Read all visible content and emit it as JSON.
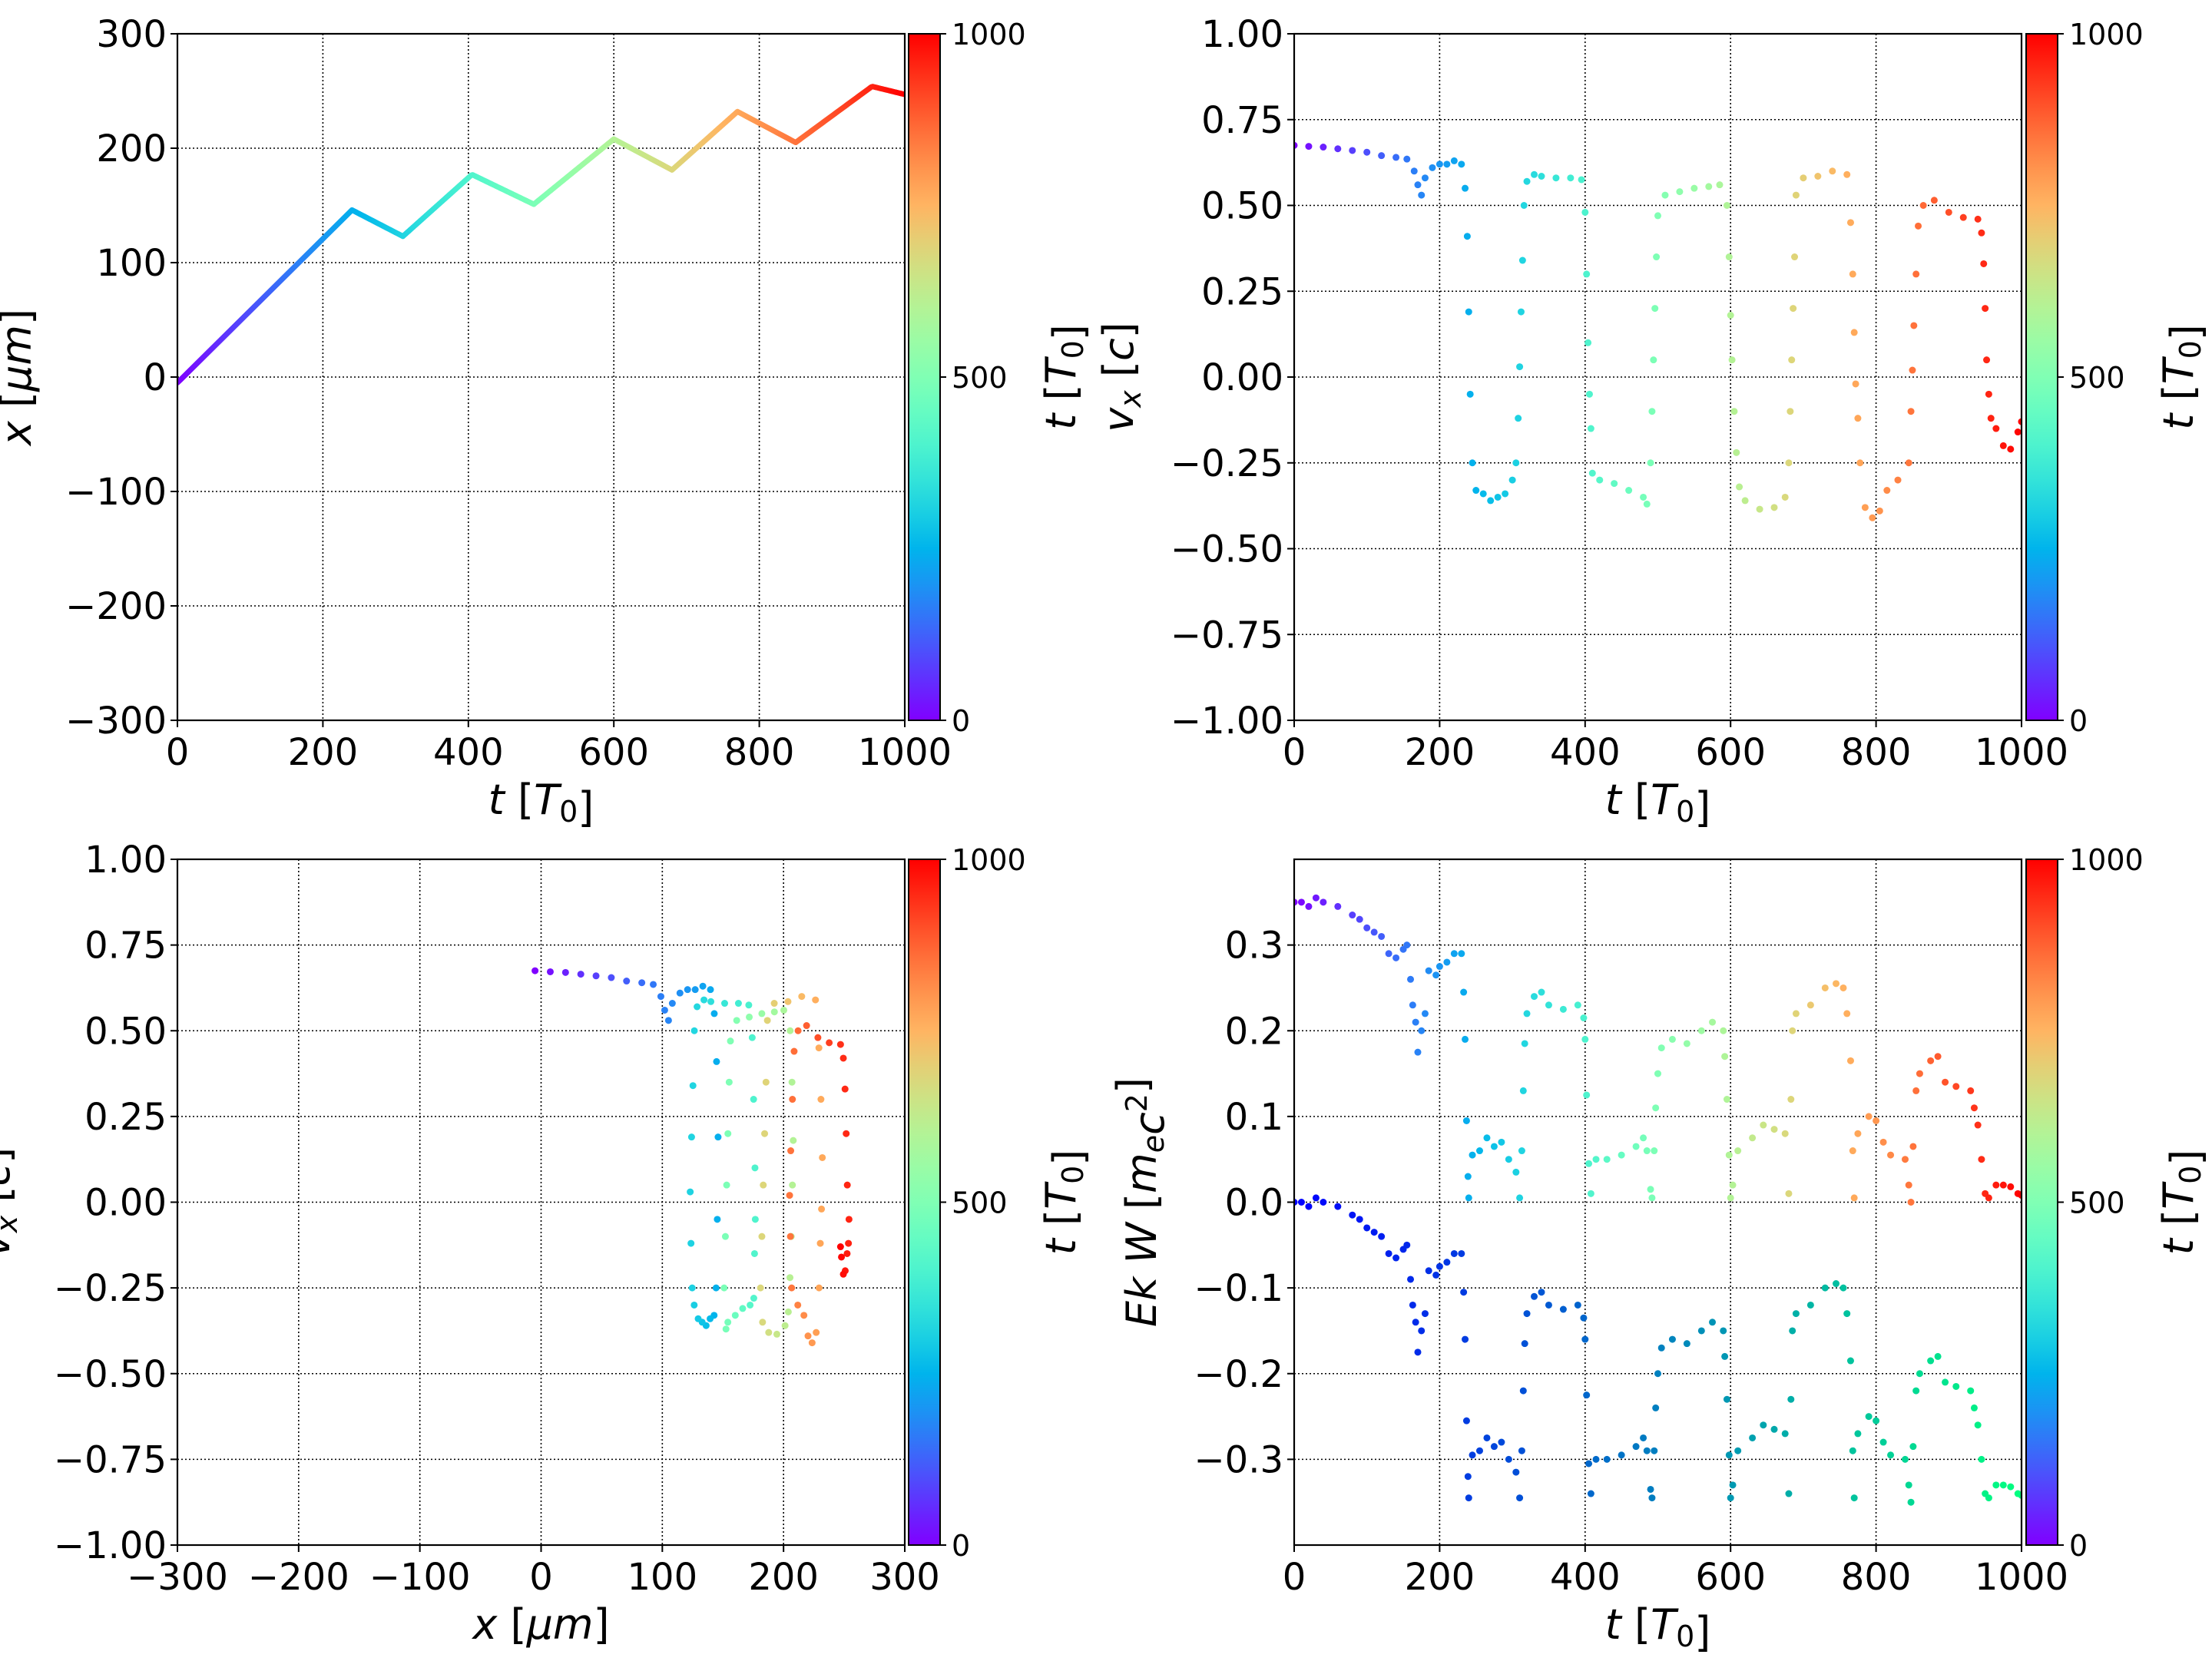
{
  "chart_data": [
    {
      "type": "line",
      "xlabel": {
        "var": "t",
        "unit": "T",
        "sub": "0"
      },
      "ylabel": {
        "var": "x",
        "unit": "μm"
      },
      "xlim": [
        0,
        1000
      ],
      "ylim": [
        -300,
        300
      ],
      "xticks": [
        0,
        200,
        400,
        600,
        800,
        1000
      ],
      "xticklabels": [
        "0",
        "200",
        "400",
        "600",
        "800",
        "1000"
      ],
      "yticks": [
        -300,
        -200,
        -100,
        0,
        100,
        200,
        300
      ],
      "yticklabels": [
        "−300",
        "−200",
        "−100",
        "0",
        "100",
        "200",
        "300"
      ],
      "grid": true,
      "colormap": "rainbow",
      "colorbar": {
        "label": {
          "var": "t",
          "unit": "T",
          "sub": "0"
        },
        "ticks": [
          0,
          500,
          1000
        ],
        "ticklabels": [
          "0",
          "500",
          "1000"
        ]
      },
      "t": [
        0,
        240,
        310,
        405,
        490,
        600,
        680,
        770,
        850,
        955,
        1000
      ],
      "x": [
        -5,
        146,
        123,
        177,
        151,
        208,
        181,
        232,
        205,
        254,
        247
      ]
    },
    {
      "type": "scatter",
      "xlabel": {
        "var": "t",
        "unit": "T",
        "sub": "0"
      },
      "ylabel": {
        "var": "v",
        "sub": "x",
        "unit": "c"
      },
      "xlim": [
        0,
        1000
      ],
      "ylim": [
        -1,
        1
      ],
      "xticks": [
        0,
        200,
        400,
        600,
        800,
        1000
      ],
      "xticklabels": [
        "0",
        "200",
        "400",
        "600",
        "800",
        "1000"
      ],
      "yticks": [
        -1,
        -0.75,
        -0.5,
        -0.25,
        0,
        0.25,
        0.5,
        0.75,
        1
      ],
      "yticklabels": [
        "−1.00",
        "−0.75",
        "−0.50",
        "−0.25",
        "0.00",
        "0.25",
        "0.50",
        "0.75",
        "1.00"
      ],
      "grid": true,
      "colormap": "rainbow",
      "colorbar": {
        "label": {
          "var": "t",
          "unit": "T",
          "sub": "0"
        },
        "ticks": [
          0,
          500,
          1000
        ],
        "ticklabels": [
          "0",
          "500",
          "1000"
        ]
      },
      "t": [
        0,
        20,
        40,
        60,
        80,
        100,
        120,
        140,
        155,
        165,
        170,
        175,
        180,
        190,
        200,
        210,
        220,
        230,
        235,
        238,
        240,
        242,
        245,
        250,
        260,
        270,
        280,
        290,
        300,
        305,
        308,
        310,
        312,
        314,
        316,
        320,
        330,
        340,
        360,
        380,
        395,
        400,
        402,
        404,
        406,
        408,
        410,
        420,
        440,
        460,
        480,
        485,
        490,
        492,
        494,
        496,
        498,
        500,
        510,
        530,
        550,
        570,
        585,
        595,
        598,
        600,
        602,
        605,
        608,
        612,
        620,
        640,
        660,
        675,
        680,
        682,
        684,
        686,
        688,
        690,
        700,
        720,
        740,
        760,
        765,
        768,
        770,
        772,
        775,
        778,
        785,
        795,
        805,
        815,
        830,
        845,
        848,
        850,
        852,
        855,
        858,
        865,
        880,
        900,
        920,
        940,
        945,
        948,
        950,
        952,
        955,
        958,
        965,
        975,
        985,
        995,
        1000
      ],
      "vx": [
        0.675,
        0.672,
        0.67,
        0.665,
        0.66,
        0.655,
        0.645,
        0.64,
        0.635,
        0.6,
        0.56,
        0.53,
        0.58,
        0.61,
        0.62,
        0.62,
        0.63,
        0.62,
        0.55,
        0.41,
        0.19,
        -0.05,
        -0.25,
        -0.33,
        -0.34,
        -0.36,
        -0.35,
        -0.34,
        -0.3,
        -0.25,
        -0.12,
        0.03,
        0.19,
        0.34,
        0.5,
        0.57,
        0.59,
        0.585,
        0.58,
        0.58,
        0.575,
        0.48,
        0.3,
        0.1,
        -0.05,
        -0.15,
        -0.28,
        -0.3,
        -0.31,
        -0.33,
        -0.35,
        -0.37,
        -0.25,
        -0.1,
        0.05,
        0.2,
        0.35,
        0.47,
        0.53,
        0.54,
        0.55,
        0.555,
        0.56,
        0.5,
        0.35,
        0.18,
        0.05,
        -0.1,
        -0.22,
        -0.32,
        -0.36,
        -0.385,
        -0.38,
        -0.35,
        -0.25,
        -0.1,
        0.05,
        0.2,
        0.35,
        0.53,
        0.58,
        0.585,
        0.6,
        0.59,
        0.45,
        0.3,
        0.13,
        -0.02,
        -0.12,
        -0.25,
        -0.38,
        -0.41,
        -0.39,
        -0.33,
        -0.3,
        -0.25,
        -0.1,
        0.02,
        0.15,
        0.3,
        0.44,
        0.5,
        0.515,
        0.48,
        0.465,
        0.46,
        0.42,
        0.33,
        0.2,
        0.05,
        -0.05,
        -0.12,
        -0.15,
        -0.2,
        -0.21,
        -0.16,
        -0.13
      ]
    },
    {
      "type": "scatter",
      "xlabel": {
        "var": "x",
        "unit": "μm"
      },
      "ylabel": {
        "var": "v",
        "sub": "x",
        "unit": "c"
      },
      "xlim": [
        -300,
        300
      ],
      "ylim": [
        -1,
        1
      ],
      "xticks": [
        -300,
        -200,
        -100,
        0,
        100,
        200,
        300
      ],
      "xticklabels": [
        "−300",
        "−200",
        "−100",
        "0",
        "100",
        "200",
        "300"
      ],
      "yticks": [
        -1,
        -0.75,
        -0.5,
        -0.25,
        0,
        0.25,
        0.5,
        0.75,
        1
      ],
      "yticklabels": [
        "−1.00",
        "−0.75",
        "−0.50",
        "−0.25",
        "0.00",
        "0.25",
        "0.50",
        "0.75",
        "1.00"
      ],
      "grid": true,
      "colormap": "rainbow",
      "colorbar": {
        "label": {
          "var": "t",
          "unit": "T",
          "sub": "0"
        },
        "ticks": [
          0,
          500,
          1000
        ],
        "ticklabels": [
          "0",
          "500",
          "1000"
        ]
      }
    },
    {
      "type": "scatter",
      "xlabel": {
        "var": "t",
        "unit": "T",
        "sub": "0"
      },
      "ylabel": {
        "var": "Ek W",
        "unit": "m",
        "sub": "e",
        "unit2": "c",
        "sup": "2"
      },
      "xlim": [
        0,
        1000
      ],
      "ylim": [
        -0.4,
        0.4
      ],
      "xticks": [
        0,
        200,
        400,
        600,
        800,
        1000
      ],
      "xticklabels": [
        "0",
        "200",
        "400",
        "600",
        "800",
        "1000"
      ],
      "yticks": [
        -0.3,
        -0.2,
        -0.1,
        0,
        0.1,
        0.2,
        0.3
      ],
      "yticklabels": [
        "−0.3",
        "−0.2",
        "−0.1",
        "0.0",
        "0.1",
        "0.2",
        "0.3"
      ],
      "grid": true,
      "colorbar": {
        "label": {
          "var": "t",
          "unit": "T",
          "sub": "0"
        },
        "ticks": [
          0,
          500,
          1000
        ],
        "ticklabels": [
          "0",
          "500",
          "1000"
        ]
      },
      "series": [
        {
          "name": "Ek",
          "colormap": "rainbow",
          "t": [
            0,
            10,
            20,
            30,
            40,
            60,
            80,
            90,
            100,
            110,
            120,
            130,
            140,
            150,
            155,
            160,
            163,
            167,
            170,
            175,
            180,
            185,
            195,
            200,
            210,
            220,
            230,
            233,
            235,
            237,
            239,
            240,
            245,
            255,
            265,
            275,
            285,
            295,
            305,
            310,
            313,
            315,
            317,
            320,
            330,
            340,
            350,
            370,
            390,
            398,
            400,
            402,
            405,
            408,
            415,
            430,
            450,
            470,
            480,
            485,
            490,
            492,
            495,
            497,
            500,
            505,
            520,
            540,
            560,
            575,
            590,
            592,
            595,
            598,
            600,
            603,
            610,
            630,
            645,
            660,
            675,
            680,
            683,
            685,
            690,
            710,
            730,
            745,
            755,
            760,
            765,
            768,
            770,
            775,
            790,
            800,
            810,
            820,
            840,
            845,
            848,
            851,
            855,
            860,
            875,
            885,
            895,
            910,
            930,
            935,
            940,
            945,
            950,
            955,
            965,
            975,
            985,
            995,
            1000
          ],
          "values": [
            0.35,
            0.35,
            0.345,
            0.355,
            0.35,
            0.345,
            0.335,
            0.33,
            0.32,
            0.315,
            0.31,
            0.29,
            0.285,
            0.295,
            0.3,
            0.26,
            0.23,
            0.21,
            0.175,
            0.2,
            0.22,
            0.27,
            0.265,
            0.275,
            0.28,
            0.29,
            0.29,
            0.245,
            0.19,
            0.095,
            0.03,
            0.005,
            0.055,
            0.06,
            0.075,
            0.065,
            0.07,
            0.05,
            0.035,
            0.005,
            0.06,
            0.13,
            0.185,
            0.22,
            0.24,
            0.245,
            0.23,
            0.225,
            0.23,
            0.215,
            0.19,
            0.125,
            0.045,
            0.01,
            0.05,
            0.05,
            0.055,
            0.065,
            0.075,
            0.06,
            0.015,
            0.005,
            0.06,
            0.11,
            0.15,
            0.18,
            0.19,
            0.185,
            0.2,
            0.21,
            0.2,
            0.17,
            0.12,
            0.055,
            0.005,
            0.02,
            0.06,
            0.075,
            0.09,
            0.085,
            0.08,
            0.01,
            0.12,
            0.2,
            0.22,
            0.23,
            0.25,
            0.255,
            0.25,
            0.22,
            0.165,
            0.06,
            0.005,
            0.08,
            0.1,
            0.095,
            0.07,
            0.055,
            0.05,
            0.02,
            0,
            0.065,
            0.13,
            0.15,
            0.165,
            0.17,
            0.14,
            0.135,
            0.13,
            0.11,
            0.09,
            0.05,
            0.01,
            0.005,
            0.02,
            0.02,
            0.018,
            0.01,
            0.008
          ]
        },
        {
          "name": "W",
          "colormap": "winter",
          "t": [
            0,
            10,
            20,
            30,
            40,
            60,
            80,
            90,
            100,
            110,
            120,
            130,
            140,
            150,
            155,
            160,
            163,
            167,
            170,
            175,
            180,
            185,
            195,
            200,
            210,
            220,
            230,
            233,
            235,
            237,
            239,
            240,
            245,
            255,
            265,
            275,
            285,
            295,
            305,
            310,
            313,
            315,
            317,
            320,
            330,
            340,
            350,
            370,
            390,
            398,
            400,
            402,
            405,
            408,
            415,
            430,
            450,
            470,
            480,
            485,
            490,
            492,
            495,
            497,
            500,
            505,
            520,
            540,
            560,
            575,
            590,
            592,
            595,
            598,
            600,
            603,
            610,
            630,
            645,
            660,
            675,
            680,
            683,
            685,
            690,
            710,
            730,
            745,
            755,
            760,
            765,
            768,
            770,
            775,
            790,
            800,
            810,
            820,
            840,
            845,
            848,
            851,
            855,
            860,
            875,
            885,
            895,
            910,
            930,
            935,
            940,
            945,
            950,
            955,
            965,
            975,
            985,
            995,
            1000
          ],
          "values": [
            0,
            0,
            -0.005,
            0.005,
            0,
            -0.005,
            -0.015,
            -0.02,
            -0.03,
            -0.035,
            -0.04,
            -0.06,
            -0.065,
            -0.055,
            -0.05,
            -0.09,
            -0.12,
            -0.14,
            -0.175,
            -0.15,
            -0.13,
            -0.08,
            -0.085,
            -0.075,
            -0.07,
            -0.06,
            -0.06,
            -0.105,
            -0.16,
            -0.255,
            -0.32,
            -0.345,
            -0.295,
            -0.29,
            -0.275,
            -0.285,
            -0.28,
            -0.3,
            -0.315,
            -0.345,
            -0.29,
            -0.22,
            -0.165,
            -0.13,
            -0.11,
            -0.105,
            -0.12,
            -0.125,
            -0.12,
            -0.135,
            -0.16,
            -0.225,
            -0.305,
            -0.34,
            -0.3,
            -0.3,
            -0.295,
            -0.285,
            -0.275,
            -0.29,
            -0.335,
            -0.345,
            -0.29,
            -0.24,
            -0.2,
            -0.17,
            -0.16,
            -0.165,
            -0.15,
            -0.14,
            -0.15,
            -0.18,
            -0.23,
            -0.295,
            -0.345,
            -0.33,
            -0.29,
            -0.275,
            -0.26,
            -0.265,
            -0.27,
            -0.34,
            -0.23,
            -0.15,
            -0.13,
            -0.12,
            -0.1,
            -0.095,
            -0.1,
            -0.13,
            -0.185,
            -0.29,
            -0.345,
            -0.27,
            -0.25,
            -0.255,
            -0.28,
            -0.295,
            -0.3,
            -0.33,
            -0.35,
            -0.285,
            -0.22,
            -0.2,
            -0.185,
            -0.18,
            -0.21,
            -0.215,
            -0.22,
            -0.24,
            -0.26,
            -0.3,
            -0.34,
            -0.345,
            -0.33,
            -0.33,
            -0.332,
            -0.34,
            -0.342
          ]
        }
      ]
    }
  ]
}
